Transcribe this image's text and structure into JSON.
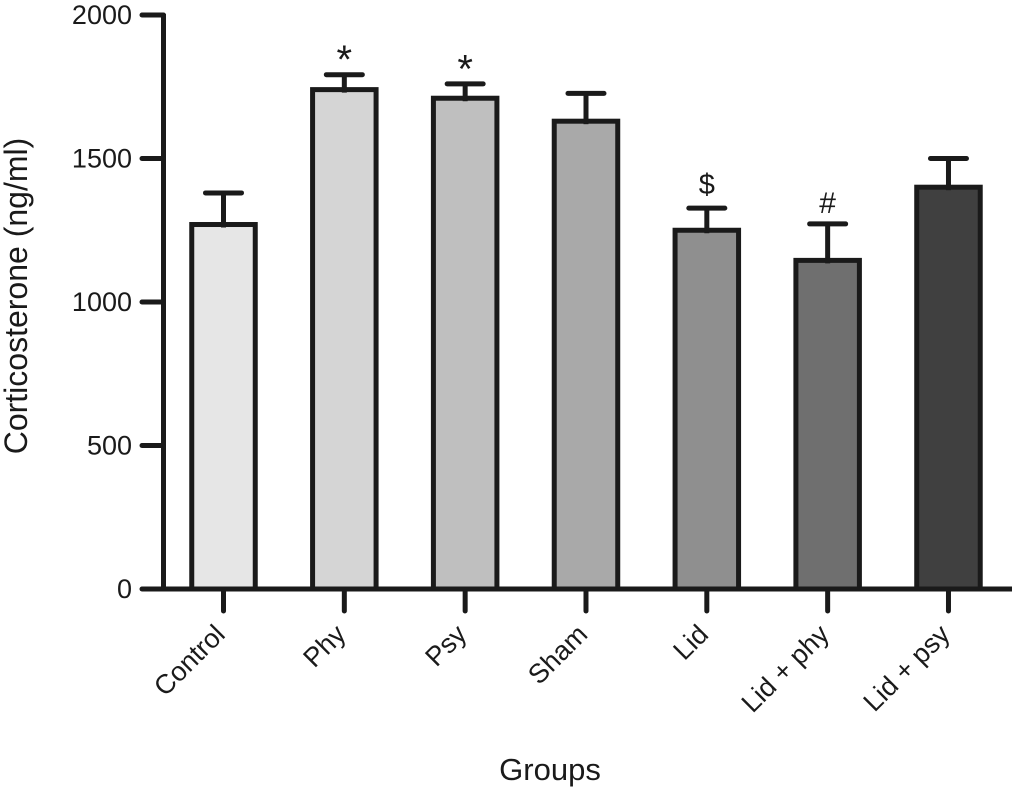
{
  "figure": {
    "background_color": "#ffffff",
    "ink_color": "#1a1a1a"
  },
  "chart_data": {
    "type": "bar",
    "title": "",
    "xlabel": "Groups",
    "ylabel": "Corticosterone (ng/ml)",
    "categories": [
      "Control",
      "Phy",
      "Psy",
      "Sham",
      "Lid",
      "Lid + phy",
      "Lid + psy"
    ],
    "values": [
      1270,
      1740,
      1710,
      1630,
      1250,
      1145,
      1400
    ],
    "errors_upper_sem": [
      110,
      52,
      50,
      97,
      77,
      127,
      100
    ],
    "annotations": [
      "",
      "*",
      "*",
      "",
      "$",
      "#",
      ""
    ],
    "bar_colors": [
      "#e6e6e6",
      "#d5d5d5",
      "#bfbfbf",
      "#a9a9a9",
      "#8f8f8f",
      "#6f6f6f",
      "#404040"
    ],
    "bar_outline_color": "#1a1a1a",
    "ylim": [
      0,
      2000
    ],
    "yticks": [
      "0",
      "500",
      "1000",
      "1500",
      "2000"
    ],
    "grid": false,
    "legend": null,
    "error_bar_style": "upper error bars with caps"
  }
}
